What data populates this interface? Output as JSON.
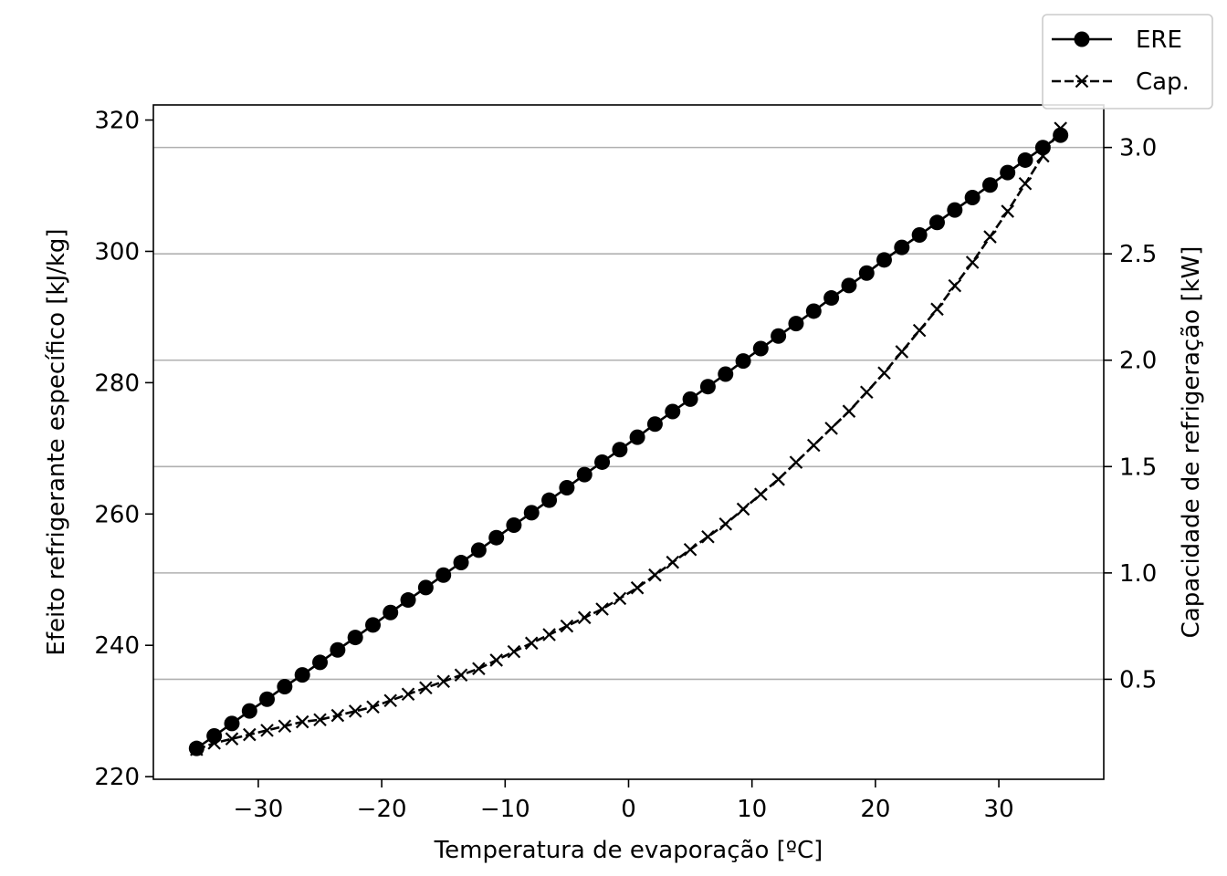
{
  "chart_data": {
    "type": "line",
    "xlabel": "Temperatura de evaporação [ºC]",
    "ylabel": "Efeito refrigerante específico [kJ/kg]",
    "y2label": "Capacidade de refrigeração [kW]",
    "xlim": [
      -38.5,
      38.5
    ],
    "ylim": [
      219.6,
      322.3
    ],
    "y2lim": [
      0.03,
      3.2
    ],
    "x_ticks": [
      -30,
      -20,
      -10,
      0,
      10,
      20,
      30
    ],
    "x_tick_labels": [
      "−30",
      "−20",
      "−10",
      "0",
      "10",
      "20",
      "30"
    ],
    "y_ticks": [
      220,
      240,
      260,
      280,
      300,
      320
    ],
    "y_tick_labels": [
      "220",
      "240",
      "260",
      "280",
      "300",
      "320"
    ],
    "y2_ticks": [
      0.5,
      1.0,
      1.5,
      2.0,
      2.5,
      3.0
    ],
    "y2_tick_labels": [
      "0.5",
      "1.0",
      "1.5",
      "2.0",
      "2.5",
      "3.0"
    ],
    "grid": "horizontal lines at right-axis ticks",
    "legend_position": "top-right",
    "series": [
      {
        "name": "ERE",
        "axis": "left",
        "linestyle": "solid",
        "marker": "circle",
        "color": "#000000",
        "x": [
          -35,
          -33.57,
          -32.14,
          -30.71,
          -29.29,
          -27.86,
          -26.43,
          -25,
          -23.57,
          -22.14,
          -20.71,
          -19.29,
          -17.86,
          -16.43,
          -15,
          -13.57,
          -12.14,
          -10.71,
          -9.29,
          -7.86,
          -6.43,
          -5,
          -3.57,
          -2.14,
          -0.71,
          0.71,
          2.14,
          3.57,
          5,
          6.43,
          7.86,
          9.29,
          10.71,
          12.14,
          13.57,
          15,
          16.43,
          17.86,
          19.29,
          20.71,
          22.14,
          23.57,
          25,
          26.43,
          27.86,
          29.29,
          30.71,
          32.14,
          33.57,
          35
        ],
        "y": [
          224.3,
          226.2,
          228.1,
          230.0,
          231.8,
          233.7,
          235.5,
          237.4,
          239.3,
          241.2,
          243.1,
          245.0,
          246.9,
          248.8,
          250.7,
          252.6,
          254.5,
          256.4,
          258.3,
          260.2,
          262.1,
          264.0,
          266.0,
          267.9,
          269.8,
          271.7,
          273.7,
          275.6,
          277.5,
          279.4,
          281.3,
          283.3,
          285.2,
          287.1,
          289.0,
          290.9,
          292.9,
          294.8,
          296.7,
          298.7,
          300.6,
          302.5,
          304.4,
          306.3,
          308.2,
          310.1,
          312.0,
          313.9,
          315.8,
          317.7
        ]
      },
      {
        "name": "Cap.",
        "axis": "right",
        "linestyle": "dashed",
        "marker": "x",
        "color": "#000000",
        "x": [
          -35,
          -33.57,
          -32.14,
          -30.71,
          -29.29,
          -27.86,
          -26.43,
          -25,
          -23.57,
          -22.14,
          -20.71,
          -19.29,
          -17.86,
          -16.43,
          -15,
          -13.57,
          -12.14,
          -10.71,
          -9.29,
          -7.86,
          -6.43,
          -5,
          -3.57,
          -2.14,
          -0.71,
          0.71,
          2.14,
          3.57,
          5,
          6.43,
          7.86,
          9.29,
          10.71,
          12.14,
          13.57,
          15,
          16.43,
          17.86,
          19.29,
          20.71,
          22.14,
          23.57,
          25,
          26.43,
          27.86,
          29.29,
          30.71,
          32.14,
          33.57,
          35
        ],
        "y": [
          0.17,
          0.2,
          0.22,
          0.24,
          0.26,
          0.28,
          0.3,
          0.31,
          0.33,
          0.35,
          0.37,
          0.4,
          0.43,
          0.46,
          0.49,
          0.52,
          0.55,
          0.59,
          0.63,
          0.67,
          0.71,
          0.75,
          0.79,
          0.83,
          0.88,
          0.93,
          0.99,
          1.05,
          1.11,
          1.17,
          1.23,
          1.3,
          1.37,
          1.44,
          1.52,
          1.6,
          1.68,
          1.76,
          1.85,
          1.94,
          2.04,
          2.14,
          2.24,
          2.35,
          2.46,
          2.58,
          2.7,
          2.83,
          2.96,
          3.09
        ]
      }
    ],
    "legend": [
      {
        "label": "ERE",
        "linestyle": "solid",
        "marker": "circle"
      },
      {
        "label": "Cap.",
        "linestyle": "dashed",
        "marker": "x"
      }
    ]
  }
}
